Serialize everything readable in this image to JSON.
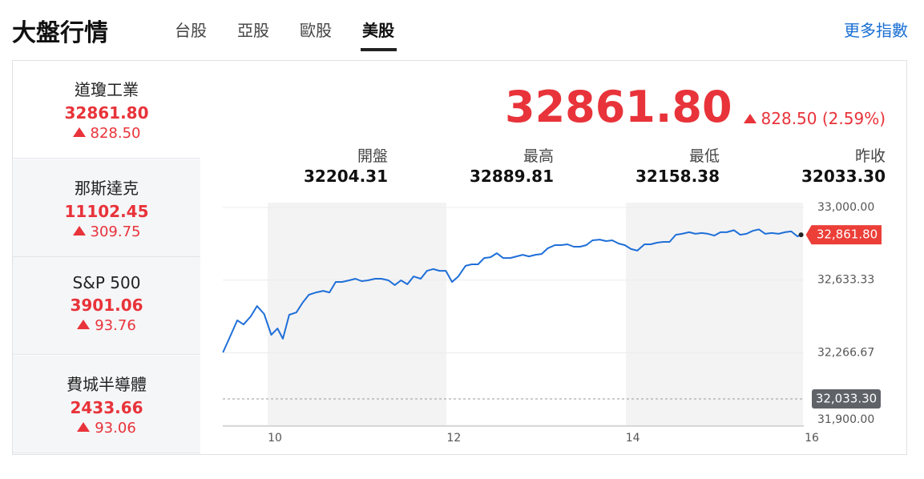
{
  "header": {
    "title": "大盤行情",
    "tabs": [
      "台股",
      "亞股",
      "歐股",
      "美股"
    ],
    "active_tab": 3,
    "more_link": "更多指數"
  },
  "quotes": [
    {
      "name": "道瓊工業",
      "value": "32861.80",
      "change": "828.50"
    },
    {
      "name": "那斯達克",
      "value": "11102.45",
      "change": "309.75"
    },
    {
      "name": "S&P 500",
      "value": "3901.06",
      "change": "93.76"
    },
    {
      "name": "費城半導體",
      "value": "2433.66",
      "change": "93.06"
    }
  ],
  "main_quote": {
    "value": "32861.80",
    "change_text": "828.50 (2.59%)"
  },
  "stats": [
    {
      "label": "開盤",
      "value": "32204.31"
    },
    {
      "label": "最高",
      "value": "32889.81"
    },
    {
      "label": "最低",
      "value": "32158.38"
    },
    {
      "label": "昨收",
      "value": "32033.30"
    }
  ],
  "chart_data": {
    "type": "line",
    "color": "#1f6fd8",
    "x": [
      9.42,
      9.5,
      9.58,
      9.65,
      9.73,
      9.8,
      9.88,
      9.96,
      10.03,
      10.09,
      10.16,
      10.24,
      10.31,
      10.38,
      10.46,
      10.54,
      10.61,
      10.68,
      10.75,
      10.83,
      10.9,
      10.97,
      11.04,
      11.12,
      11.19,
      11.27,
      11.34,
      11.41,
      11.48,
      11.55,
      11.63,
      11.7,
      11.77,
      11.84,
      11.91,
      11.98,
      12.05,
      12.13,
      12.2,
      12.27,
      12.34,
      12.41,
      12.48,
      12.55,
      12.63,
      12.7,
      12.77,
      12.84,
      12.91,
      12.98,
      13.05,
      13.13,
      13.2,
      13.27,
      13.34,
      13.41,
      13.48,
      13.55,
      13.63,
      13.7,
      13.77,
      13.84,
      13.91,
      13.98,
      14.05,
      14.13,
      14.2,
      14.27,
      14.34,
      14.41,
      14.48,
      14.55,
      14.63,
      14.7,
      14.77,
      14.84,
      14.91,
      14.98,
      15.05,
      15.13,
      15.2,
      15.27,
      15.34,
      15.41,
      15.48,
      15.55,
      15.63,
      15.7,
      15.77,
      15.84,
      15.88
    ],
    "values": [
      32268,
      32349,
      32430,
      32409,
      32450,
      32502,
      32462,
      32357,
      32389,
      32337,
      32458,
      32470,
      32519,
      32559,
      32571,
      32579,
      32571,
      32624,
      32624,
      32632,
      32640,
      32628,
      32632,
      32640,
      32640,
      32632,
      32608,
      32632,
      32612,
      32652,
      32640,
      32680,
      32689,
      32680,
      32680,
      32624,
      32652,
      32705,
      32713,
      32713,
      32745,
      32749,
      32769,
      32745,
      32745,
      32753,
      32761,
      32753,
      32761,
      32765,
      32794,
      32810,
      32810,
      32814,
      32802,
      32802,
      32810,
      32834,
      32838,
      32830,
      32834,
      32818,
      32810,
      32790,
      32782,
      32814,
      32814,
      32822,
      32826,
      32826,
      32862,
      32867,
      32875,
      32867,
      32871,
      32867,
      32858,
      32875,
      32875,
      32885,
      32862,
      32867,
      32882,
      32889,
      32867,
      32871,
      32867,
      32875,
      32879,
      32854,
      32861.8
    ],
    "xlim": [
      9.4,
      16
    ],
    "xticks": [
      10,
      12,
      14,
      16
    ],
    "ylim": [
      31900,
      33000
    ],
    "yticks": [
      {
        "value": 33000,
        "label": "33,000.00"
      },
      {
        "value": 32633.33,
        "label": "32,633.33"
      },
      {
        "value": 32266.67,
        "label": "32,266.67"
      },
      {
        "value": 31900,
        "label": "31,900.00"
      }
    ],
    "grid": true,
    "reference_line": {
      "value": 32033.3,
      "label": "32,033.30"
    },
    "current_label": {
      "value": 32861.8,
      "label": "32,861.80"
    }
  }
}
